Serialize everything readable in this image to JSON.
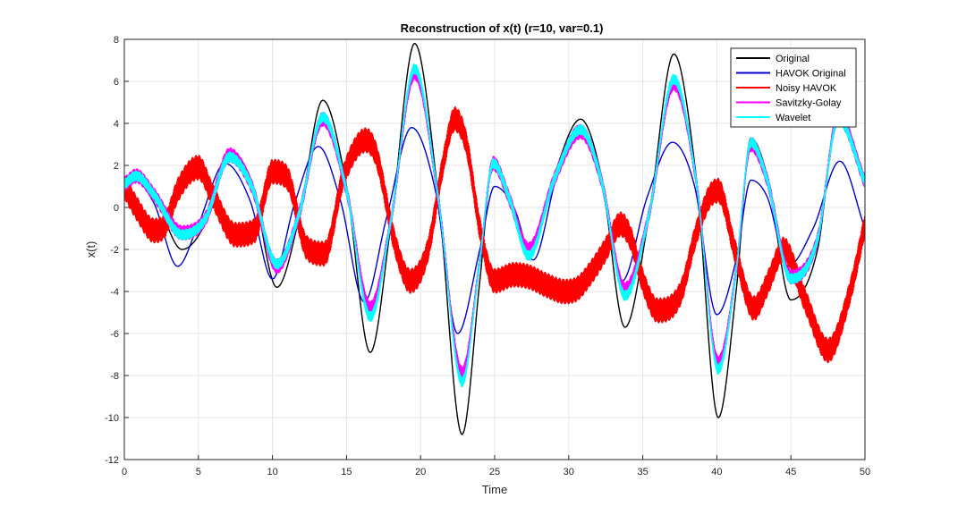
{
  "chart_data": {
    "type": "line",
    "title": "Reconstruction of x(t) (r=10, var=0.1)",
    "xlabel": "Time",
    "ylabel": "x(t)",
    "xlim": [
      0,
      50
    ],
    "ylim": [
      -12,
      8
    ],
    "xticks": [
      "0",
      "5",
      "10",
      "15",
      "20",
      "25",
      "30",
      "35",
      "40",
      "45",
      "50"
    ],
    "yticks": [
      "-12",
      "-10",
      "-8",
      "-6",
      "-4",
      "-2",
      "0",
      "2",
      "4",
      "6",
      "8"
    ],
    "grid": true,
    "legend_position": "top-right",
    "series": [
      {
        "name": "Original",
        "color": "#000000",
        "noise": 0,
        "x": [
          0,
          0.8,
          2,
          3.9,
          5.5,
          7.1,
          8.6,
          10.3,
          11.8,
          13.4,
          15,
          16.6,
          18,
          19.6,
          21.2,
          22.8,
          24,
          24.9,
          26,
          27.3,
          29,
          30.8,
          32.2,
          33.8,
          35.4,
          37.1,
          38.6,
          40.1,
          41.3,
          42.3,
          43.4,
          45,
          46.8,
          48.2,
          50
        ],
        "y": [
          1.1,
          1.5,
          0.6,
          -2.0,
          -0.7,
          2.7,
          1.2,
          -3.8,
          -0.5,
          5.1,
          1.0,
          -6.9,
          -0.8,
          7.8,
          0.5,
          -10.8,
          -3.5,
          2.3,
          0.5,
          -2.4,
          1.5,
          4.2,
          1.5,
          -5.7,
          -0.5,
          7.3,
          1.5,
          -10.0,
          -4.0,
          3.3,
          1.5,
          -4.4,
          -2.0,
          4.6,
          1.2
        ]
      },
      {
        "name": "HAVOK Original",
        "color": "#0000cd",
        "noise": 0,
        "x": [
          0,
          0.5,
          2,
          3.6,
          5,
          6.8,
          8.5,
          10,
          11.5,
          13.1,
          14.6,
          16.2,
          17.7,
          19.4,
          21,
          22.5,
          24,
          25,
          26.3,
          27.6,
          29.2,
          30.7,
          32.1,
          33.6,
          35.3,
          37,
          38.5,
          40,
          41.3,
          42.3,
          43.4,
          44.8,
          46.5,
          48.3,
          50
        ],
        "y": [
          1.0,
          1.4,
          0.2,
          -2.8,
          -0.8,
          2.1,
          0.3,
          -3.4,
          0.2,
          2.9,
          0.3,
          -4.5,
          -0.5,
          3.8,
          0.8,
          -6.0,
          -2.0,
          1.0,
          0.0,
          -2.5,
          1.5,
          3.9,
          1.5,
          -3.5,
          0.5,
          3.1,
          1.0,
          -5.1,
          -2.5,
          1.3,
          0.5,
          -2.8,
          -1.0,
          2.2,
          -1.0
        ]
      },
      {
        "name": "Noisy HAVOK",
        "color": "#ff0000",
        "noise": 0.6,
        "x": [
          0,
          0.8,
          2,
          2.7,
          3.6,
          5,
          6,
          7.5,
          8.8,
          10,
          11,
          12.3,
          13.5,
          14.8,
          16.3,
          17,
          18.3,
          19.3,
          20.5,
          21.5,
          22.3,
          23.1,
          24,
          25,
          26.3,
          27.3,
          28.5,
          29.7,
          30.5,
          31.5,
          32.5,
          33.5,
          34.2,
          35,
          36,
          37.6,
          38.5,
          39.5,
          40.1,
          41.2,
          42.5,
          43.5,
          44.5,
          46,
          47.5,
          49,
          50
        ],
        "y": [
          1.0,
          0.0,
          -1.1,
          -0.9,
          0.8,
          1.9,
          0.5,
          -1.3,
          -1.1,
          1.7,
          1.4,
          -1.9,
          -2.2,
          1.5,
          3.2,
          2.5,
          -1.8,
          -3.5,
          -2.0,
          2.0,
          4.2,
          3.0,
          -1.0,
          -3.5,
          -3.2,
          -3.3,
          -3.7,
          -4.0,
          -3.9,
          -3.1,
          -2.0,
          -0.8,
          -1.5,
          -3.5,
          -4.9,
          -4.0,
          -1.5,
          0.5,
          0.8,
          -2.0,
          -4.8,
          -3.5,
          -2.0,
          -4.5,
          -6.8,
          -4.0,
          -0.8
        ]
      },
      {
        "name": "Savitzky-Golay",
        "color": "#ff00ff",
        "noise": 0.35,
        "x": [
          0,
          0.8,
          2,
          3.9,
          5.5,
          7.1,
          8.6,
          10.3,
          11.8,
          13.4,
          15,
          16.6,
          18,
          19.6,
          21.2,
          22.8,
          24,
          24.9,
          26,
          27.3,
          29,
          30.8,
          32.2,
          33.8,
          35.4,
          37.1,
          38.6,
          40.1,
          41.3,
          42.3,
          43.4,
          45,
          46.8,
          48.2,
          50
        ],
        "y": [
          1.1,
          1.5,
          0.6,
          -1.2,
          -0.5,
          2.5,
          1.0,
          -2.8,
          -0.3,
          4.2,
          0.8,
          -4.8,
          -0.6,
          6.4,
          0.4,
          -7.9,
          -2.5,
          2.1,
          0.4,
          -2.0,
          1.3,
          3.6,
          1.3,
          -3.9,
          -0.4,
          5.9,
          1.3,
          -7.4,
          -3.0,
          3.0,
          1.3,
          -3.3,
          -1.5,
          4.3,
          1.2
        ]
      },
      {
        "name": "Wavelet",
        "color": "#00ffff",
        "noise": 0.25,
        "x": [
          0,
          0.8,
          2,
          3.9,
          5.5,
          7.1,
          8.6,
          10.3,
          11.8,
          13.4,
          15,
          16.6,
          18,
          19.6,
          21.2,
          22.8,
          24,
          24.9,
          26,
          27.3,
          29,
          30.8,
          32.2,
          33.8,
          35.4,
          37.1,
          38.6,
          40.1,
          41.3,
          42.3,
          43.4,
          45,
          46.8,
          48.2,
          50
        ],
        "y": [
          1.1,
          1.5,
          0.6,
          -1.3,
          -0.5,
          2.4,
          1.0,
          -2.7,
          -0.3,
          4.3,
          0.8,
          -5.2,
          -0.6,
          6.6,
          0.4,
          -8.3,
          -2.5,
          2.1,
          0.4,
          -2.3,
          1.3,
          3.7,
          1.3,
          -4.2,
          -0.4,
          6.1,
          1.3,
          -7.7,
          -3.0,
          3.1,
          1.3,
          -3.4,
          -1.5,
          4.2,
          1.2
        ]
      }
    ]
  }
}
